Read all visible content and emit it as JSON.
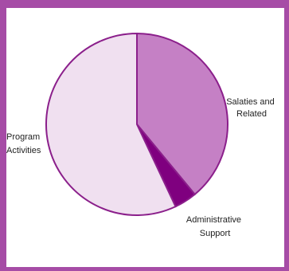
{
  "chart_data": {
    "type": "pie",
    "title": "",
    "slices": [
      {
        "label_lines": [
          "Salaties and",
          "Related"
        ],
        "value": 39,
        "color": "#c580c5"
      },
      {
        "label_lines": [
          "Administrative",
          "Support"
        ],
        "value": 4,
        "color": "#7f007f"
      },
      {
        "label_lines": [
          "Program",
          "Activities"
        ],
        "value": 57,
        "color": "#f0e0f0"
      }
    ],
    "outline_color": "#8b1f8b",
    "frame_color": "#a64ca6"
  }
}
